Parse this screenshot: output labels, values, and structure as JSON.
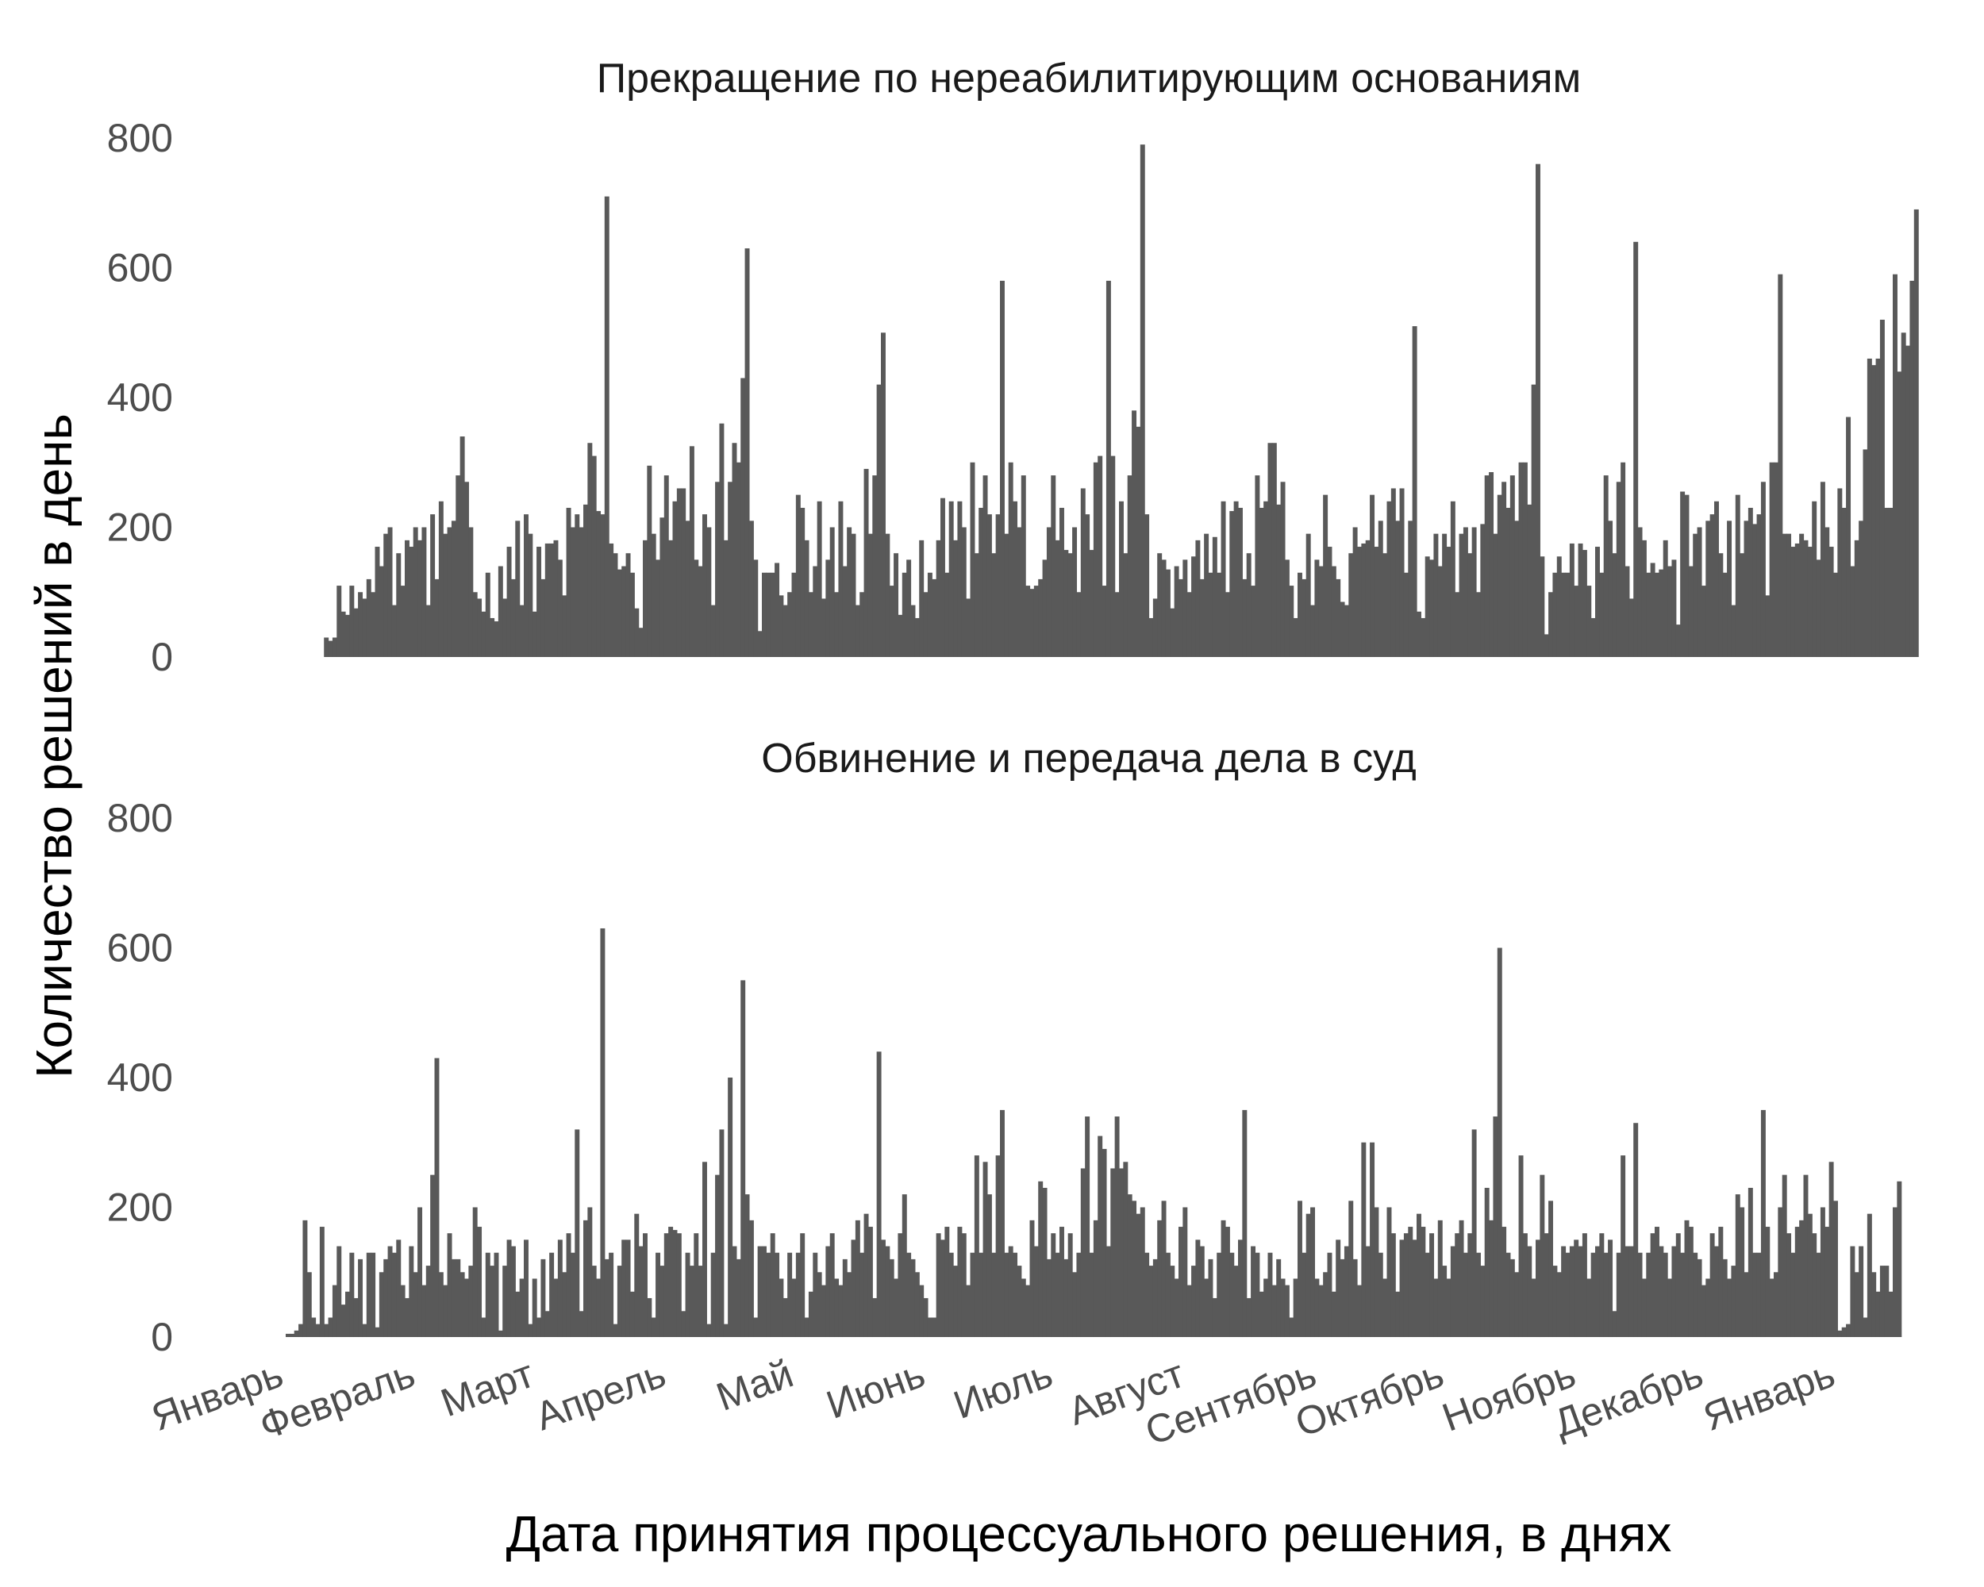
{
  "chart_data": {
    "type": "bar",
    "xlabel": "Дата принятия процессуального решения, в днях",
    "ylabel": "Количество решений в день",
    "x_range": [
      "2019-01-01",
      "2020-01-14"
    ],
    "x_ticks": [
      {
        "date": "2019-01-01",
        "label": "Январь"
      },
      {
        "date": "2019-02-01",
        "label": "Февраль"
      },
      {
        "date": "2019-03-01",
        "label": "Март"
      },
      {
        "date": "2019-04-01",
        "label": "Апрель"
      },
      {
        "date": "2019-05-01",
        "label": "Май"
      },
      {
        "date": "2019-06-01",
        "label": "Июнь"
      },
      {
        "date": "2019-07-01",
        "label": "Июль"
      },
      {
        "date": "2019-08-01",
        "label": "Август"
      },
      {
        "date": "2019-09-01",
        "label": "Сентябрь"
      },
      {
        "date": "2019-10-01",
        "label": "Октябрь"
      },
      {
        "date": "2019-11-01",
        "label": "Ноябрь"
      },
      {
        "date": "2019-12-01",
        "label": "Декабрь"
      },
      {
        "date": "2020-01-01",
        "label": "Январь"
      }
    ],
    "ylim": [
      0,
      800
    ],
    "y_ticks": [
      0,
      200,
      400,
      600,
      800
    ],
    "grid": false,
    "legend": "none",
    "bar_color": "#595959",
    "panels": [
      {
        "title": "Прекращение по нереабилитирующим основаниям",
        "x_start": "2019-01-10",
        "values": [
          30,
          25,
          30,
          110,
          70,
          65,
          110,
          75,
          100,
          90,
          120,
          100,
          170,
          140,
          190,
          200,
          80,
          160,
          110,
          180,
          170,
          200,
          180,
          200,
          80,
          220,
          120,
          240,
          190,
          200,
          210,
          280,
          340,
          270,
          200,
          100,
          90,
          70,
          130,
          60,
          55,
          140,
          90,
          170,
          120,
          210,
          80,
          220,
          190,
          70,
          170,
          120,
          175,
          175,
          180,
          150,
          95,
          230,
          200,
          220,
          200,
          235,
          330,
          310,
          225,
          220,
          710,
          175,
          160,
          135,
          140,
          160,
          130,
          75,
          45,
          180,
          295,
          190,
          150,
          215,
          280,
          180,
          240,
          260,
          260,
          210,
          325,
          150,
          140,
          220,
          200,
          80,
          270,
          360,
          180,
          270,
          330,
          300,
          430,
          630,
          210,
          150,
          40,
          130,
          130,
          130,
          145,
          95,
          80,
          100,
          130,
          250,
          230,
          180,
          100,
          140,
          240,
          90,
          150,
          200,
          100,
          240,
          140,
          200,
          190,
          80,
          100,
          290,
          190,
          280,
          420,
          500,
          190,
          110,
          160,
          65,
          130,
          150,
          80,
          60,
          180,
          100,
          130,
          120,
          180,
          245,
          130,
          240,
          180,
          240,
          200,
          90,
          300,
          160,
          230,
          280,
          220,
          160,
          220,
          580,
          190,
          300,
          240,
          200,
          280,
          110,
          105,
          110,
          120,
          150,
          200,
          280,
          180,
          230,
          165,
          160,
          200,
          100,
          260,
          220,
          165,
          300,
          310,
          110,
          580,
          310,
          100,
          240,
          160,
          280,
          380,
          355,
          790,
          220,
          60,
          90,
          160,
          150,
          135,
          75,
          140,
          120,
          150,
          100,
          155,
          180,
          120,
          190,
          130,
          185,
          130,
          240,
          100,
          225,
          240,
          230,
          120,
          160,
          110,
          280,
          230,
          240,
          330,
          330,
          235,
          270,
          150,
          110,
          60,
          130,
          120,
          190,
          80,
          150,
          140,
          250,
          170,
          140,
          120,
          85,
          80,
          160,
          200,
          170,
          175,
          180,
          250,
          170,
          210,
          160,
          240,
          260,
          210,
          260,
          130,
          210,
          510,
          70,
          60,
          155,
          150,
          190,
          140,
          190,
          170,
          240,
          100,
          190,
          200,
          160,
          200,
          100,
          205,
          280,
          285,
          190,
          250,
          270,
          230,
          280,
          210,
          300,
          300,
          235,
          420,
          760,
          155,
          35,
          100,
          130,
          155,
          130,
          130,
          175,
          110,
          175,
          165,
          110,
          60,
          170,
          130,
          280,
          210,
          160,
          270,
          300,
          140,
          90,
          640,
          200,
          180,
          130,
          145,
          130,
          135,
          180,
          140,
          150,
          50,
          255,
          250,
          140,
          190,
          200,
          110,
          210,
          220,
          240,
          160,
          130,
          210,
          80,
          250,
          160,
          210,
          230,
          205,
          220,
          270,
          95,
          300,
          300,
          590,
          190,
          190,
          170,
          175,
          190,
          180,
          170,
          240,
          150,
          270,
          200,
          170,
          130,
          260,
          230,
          370,
          140,
          180,
          210,
          320,
          460,
          450,
          460,
          520,
          230,
          230,
          590,
          440,
          500,
          480,
          580,
          690
        ]
      },
      {
        "title": "Обвинение и передача дела в суд",
        "x_start": "2019-01-01",
        "values": [
          5,
          5,
          10,
          20,
          180,
          100,
          30,
          20,
          170,
          20,
          30,
          80,
          140,
          50,
          70,
          130,
          60,
          120,
          20,
          130,
          130,
          15,
          100,
          120,
          140,
          130,
          150,
          80,
          60,
          140,
          100,
          200,
          80,
          110,
          250,
          430,
          100,
          80,
          160,
          120,
          120,
          100,
          90,
          110,
          200,
          170,
          30,
          130,
          110,
          130,
          10,
          110,
          150,
          140,
          70,
          90,
          150,
          20,
          90,
          30,
          120,
          40,
          130,
          90,
          150,
          100,
          160,
          130,
          320,
          40,
          180,
          200,
          110,
          90,
          630,
          120,
          130,
          20,
          110,
          150,
          150,
          70,
          190,
          140,
          160,
          60,
          30,
          130,
          110,
          160,
          170,
          165,
          160,
          40,
          130,
          110,
          160,
          110,
          270,
          20,
          130,
          250,
          320,
          20,
          400,
          140,
          120,
          550,
          220,
          180,
          30,
          140,
          140,
          130,
          160,
          130,
          90,
          60,
          130,
          90,
          130,
          160,
          30,
          70,
          130,
          100,
          80,
          140,
          160,
          90,
          80,
          120,
          100,
          150,
          180,
          130,
          190,
          170,
          60,
          440,
          150,
          140,
          120,
          90,
          160,
          220,
          130,
          120,
          100,
          80,
          60,
          30,
          30,
          160,
          150,
          170,
          130,
          110,
          170,
          160,
          80,
          130,
          280,
          130,
          270,
          220,
          130,
          280,
          350,
          130,
          140,
          130,
          110,
          90,
          80,
          180,
          140,
          240,
          230,
          120,
          160,
          130,
          170,
          120,
          160,
          100,
          130,
          260,
          340,
          130,
          180,
          310,
          290,
          140,
          260,
          340,
          260,
          270,
          220,
          210,
          190,
          200,
          130,
          110,
          120,
          180,
          210,
          130,
          110,
          90,
          170,
          200,
          80,
          110,
          150,
          140,
          90,
          120,
          60,
          130,
          180,
          170,
          130,
          110,
          150,
          350,
          60,
          140,
          130,
          70,
          90,
          130,
          80,
          120,
          90,
          80,
          30,
          90,
          210,
          130,
          190,
          200,
          90,
          80,
          100,
          130,
          70,
          150,
          120,
          140,
          210,
          120,
          80,
          300,
          140,
          300,
          200,
          130,
          90,
          200,
          160,
          70,
          150,
          160,
          170,
          150,
          190,
          170,
          130,
          160,
          90,
          180,
          110,
          90,
          140,
          160,
          180,
          130,
          160,
          320,
          130,
          110,
          230,
          180,
          340,
          600,
          170,
          130,
          120,
          100,
          280,
          160,
          140,
          90,
          150,
          250,
          160,
          210,
          110,
          100,
          140,
          130,
          140,
          150,
          140,
          160,
          90,
          130,
          140,
          160,
          130,
          150,
          40,
          130,
          280,
          140,
          140,
          330,
          130,
          90,
          130,
          160,
          170,
          140,
          130,
          90,
          140,
          160,
          130,
          180,
          170,
          130,
          120,
          80,
          90,
          160,
          140,
          170,
          120,
          90,
          110,
          220,
          200,
          100,
          230,
          130,
          130,
          350,
          170,
          90,
          100,
          200,
          250,
          160,
          130,
          170,
          180,
          250,
          190,
          160,
          130,
          200,
          170,
          270,
          210,
          10,
          15,
          20,
          140,
          100,
          140,
          30,
          190,
          100,
          70,
          110,
          110,
          70,
          200,
          240
        ]
      }
    ]
  }
}
